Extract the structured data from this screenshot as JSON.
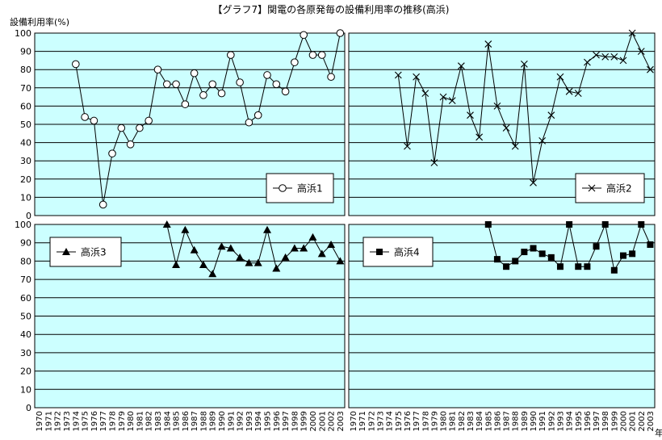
{
  "title": "【グラフ7】関電の各原発毎の設備利用率の推移(高浜)",
  "ylabel": "設備利用率(%)",
  "xunit": "年",
  "chart_data": [
    {
      "type": "line",
      "marker": "open-circle",
      "legend": "高浜1",
      "legend_position": "bottom-right",
      "ylim": [
        0,
        100
      ],
      "yticks": [
        0,
        10,
        20,
        30,
        40,
        50,
        60,
        70,
        80,
        90,
        100
      ],
      "grid": true,
      "x": [
        1974,
        1975,
        1976,
        1977,
        1978,
        1979,
        1980,
        1981,
        1982,
        1983,
        1984,
        1985,
        1986,
        1987,
        1988,
        1989,
        1990,
        1991,
        1992,
        1993,
        1994,
        1995,
        1996,
        1997,
        1998,
        1999,
        2000,
        2001,
        2002,
        2003
      ],
      "values": [
        83,
        54,
        52,
        6,
        34,
        48,
        39,
        48,
        52,
        80,
        72,
        72,
        61,
        78,
        66,
        72,
        67,
        88,
        73,
        51,
        55,
        77,
        72,
        68,
        84,
        99,
        88,
        88,
        76,
        100
      ]
    },
    {
      "type": "line",
      "marker": "x",
      "legend": "高浜2",
      "legend_position": "bottom-right",
      "ylim": [
        0,
        100
      ],
      "yticks": [
        0,
        10,
        20,
        30,
        40,
        50,
        60,
        70,
        80,
        90,
        100
      ],
      "grid": true,
      "x": [
        1975,
        1976,
        1977,
        1978,
        1979,
        1980,
        1981,
        1982,
        1983,
        1984,
        1985,
        1986,
        1987,
        1988,
        1989,
        1990,
        1991,
        1992,
        1993,
        1994,
        1995,
        1996,
        1997,
        1998,
        1999,
        2000,
        2001,
        2002,
        2003
      ],
      "values": [
        77,
        38,
        76,
        67,
        29,
        65,
        63,
        82,
        55,
        43,
        94,
        60,
        48,
        38,
        83,
        18,
        41,
        55,
        76,
        68,
        67,
        84,
        88,
        87,
        87,
        85,
        100,
        90,
        80
      ]
    },
    {
      "type": "line",
      "marker": "filled-triangle",
      "legend": "高浜3",
      "legend_position": "top-left",
      "ylim": [
        0,
        100
      ],
      "yticks": [
        0,
        10,
        20,
        30,
        40,
        50,
        60,
        70,
        80,
        90,
        100
      ],
      "grid": true,
      "x": [
        1984,
        1985,
        1986,
        1987,
        1988,
        1989,
        1990,
        1991,
        1992,
        1993,
        1994,
        1995,
        1996,
        1997,
        1998,
        1999,
        2000,
        2001,
        2002,
        2003
      ],
      "values": [
        100,
        78,
        97,
        86,
        78,
        73,
        88,
        87,
        82,
        79,
        79,
        97,
        76,
        82,
        87,
        87,
        93,
        84,
        89,
        80
      ]
    },
    {
      "type": "line",
      "marker": "filled-square",
      "legend": "高浜4",
      "legend_position": "top-left",
      "ylim": [
        0,
        100
      ],
      "yticks": [
        0,
        10,
        20,
        30,
        40,
        50,
        60,
        70,
        80,
        90,
        100
      ],
      "grid": true,
      "x": [
        1985,
        1986,
        1987,
        1988,
        1989,
        1990,
        1991,
        1992,
        1993,
        1994,
        1995,
        1996,
        1997,
        1998,
        1999,
        2000,
        2001,
        2002,
        2003
      ],
      "values": [
        100,
        81,
        77,
        80,
        85,
        87,
        84,
        82,
        77,
        100,
        77,
        77,
        88,
        100,
        75,
        83,
        84,
        100,
        89
      ]
    }
  ],
  "xcategories": [
    "1970",
    "1971",
    "1972",
    "1973",
    "1974",
    "1975",
    "1976",
    "1977",
    "1978",
    "1979",
    "1980",
    "1981",
    "1982",
    "1983",
    "1984",
    "1985",
    "1986",
    "1987",
    "1988",
    "1989",
    "1990",
    "1991",
    "1992",
    "1993",
    "1994",
    "1995",
    "1996",
    "1997",
    "1998",
    "1999",
    "2000",
    "2001",
    "2002",
    "2003"
  ],
  "colors": {
    "plot_bg": "#ccffff",
    "line": "#000000",
    "grid": "#000000",
    "panel_bg": "#ffffff"
  }
}
